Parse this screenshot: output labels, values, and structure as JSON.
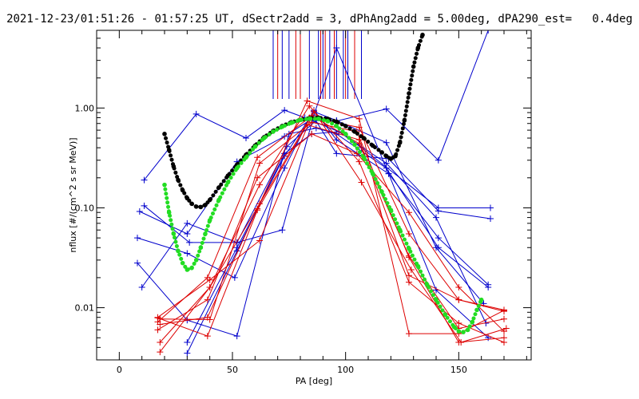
{
  "chart_data": {
    "type": "line",
    "title": "2021-12-23/01:51:26 - 01:57:25 UT, dSectr2add = 3, dPhAng2add = 5.00deg, dPA290_est=   0.4deg",
    "xlabel": "PA [deg]",
    "ylabel": "nflux [#/(cm^2 s sr MeV)]",
    "xlim": [
      -10,
      182
    ],
    "ylim": [
      0.003,
      6.0
    ],
    "yscale": "log",
    "grid": false,
    "x_ticks": [
      0,
      50,
      100,
      150
    ],
    "x_tick_labels": [
      "0",
      "50",
      "100",
      "150"
    ],
    "y_ticks": [
      0.01,
      0.1,
      1.0
    ],
    "y_tick_labels": [
      "0.01",
      "0.10",
      "1.00"
    ],
    "colors": {
      "blue": "#0000cc",
      "red": "#dd0000",
      "fit_black": "#000000",
      "fit_green": "#22dd22"
    },
    "series": [
      {
        "color": "blue",
        "x": [
          11,
          34,
          56,
          73,
          82,
          97,
          107,
          141,
          164
        ],
        "y": [
          0.19,
          0.87,
          0.5,
          0.95,
          0.8,
          0.58,
          0.4,
          0.1,
          0.1
        ]
      },
      {
        "color": "blue",
        "x": [
          9,
          30,
          52,
          73,
          86,
          96,
          119,
          141,
          164
        ],
        "y": [
          0.092,
          0.055,
          0.29,
          0.52,
          0.8,
          0.35,
          0.31,
          0.093,
          0.078
        ]
      },
      {
        "color": "blue",
        "x": [
          11,
          31,
          52,
          74,
          87,
          96,
          118,
          141,
          163
        ],
        "y": [
          0.105,
          0.045,
          0.045,
          0.41,
          0.75,
          0.74,
          0.98,
          0.3,
          6.0
        ]
      },
      {
        "color": "blue",
        "x": [
          8,
          30,
          51,
          73,
          86,
          96,
          119,
          141,
          163
        ],
        "y": [
          0.05,
          0.035,
          0.02,
          0.25,
          0.95,
          0.48,
          0.22,
          0.05,
          0.017
        ]
      },
      {
        "color": "blue",
        "x": [
          8,
          30,
          52,
          75,
          87,
          96,
          118,
          141,
          163
        ],
        "y": [
          0.028,
          0.0075,
          0.0052,
          0.55,
          0.63,
          0.55,
          0.25,
          0.04,
          0.016
        ]
      },
      {
        "color": "blue",
        "x": [
          10,
          30,
          52,
          72,
          86,
          96,
          119,
          140,
          163
        ],
        "y": [
          0.016,
          0.07,
          0.045,
          0.06,
          0.85,
          4.0,
          0.22,
          0.015,
          0.005
        ]
      },
      {
        "color": "blue",
        "x": [
          30,
          52,
          73,
          85,
          97,
          118,
          140,
          162
        ],
        "y": [
          0.0035,
          0.037,
          0.35,
          0.55,
          0.58,
          0.28,
          0.08,
          0.007
        ]
      },
      {
        "color": "blue",
        "x": [
          30,
          52,
          73,
          86,
          96,
          118,
          140,
          161
        ],
        "y": [
          0.0045,
          0.04,
          0.33,
          0.92,
          0.75,
          0.45,
          0.04,
          0.011
        ]
      },
      {
        "color": "red",
        "x": [
          17,
          40,
          62,
          86,
          107,
          129,
          151,
          171
        ],
        "y": [
          0.008,
          0.019,
          0.047,
          0.93,
          0.18,
          0.024,
          0.0045,
          0.0062
        ]
      },
      {
        "color": "red",
        "x": [
          18,
          39,
          61,
          83,
          106,
          128,
          150,
          170
        ],
        "y": [
          0.0068,
          0.008,
          0.098,
          1.18,
          0.78,
          0.0055,
          0.0055,
          0.0094
        ]
      },
      {
        "color": "red",
        "x": [
          17,
          39,
          61,
          83,
          106,
          128,
          150,
          170
        ],
        "y": [
          0.0079,
          0.0052,
          0.095,
          0.68,
          0.48,
          0.021,
          0.012,
          0.0095
        ]
      },
      {
        "color": "red",
        "x": [
          18,
          40,
          62,
          84,
          106,
          128,
          150,
          170
        ],
        "y": [
          0.0045,
          0.016,
          0.17,
          1.05,
          0.29,
          0.018,
          0.007,
          0.0045
        ]
      },
      {
        "color": "red",
        "x": [
          17,
          39,
          61,
          85,
          105,
          128,
          150,
          170
        ],
        "y": [
          0.006,
          0.012,
          0.2,
          0.55,
          0.35,
          0.09,
          0.016,
          0.0058
        ]
      },
      {
        "color": "red",
        "x": [
          18,
          40,
          62,
          85,
          105,
          128,
          150,
          170
        ],
        "y": [
          0.0077,
          0.0076,
          0.28,
          0.72,
          0.58,
          0.032,
          0.0045,
          0.005
        ]
      },
      {
        "color": "red",
        "x": [
          17,
          39,
          61,
          84,
          106,
          128,
          150,
          170
        ],
        "y": [
          0.0072,
          0.02,
          0.32,
          0.8,
          0.64,
          0.055,
          0.012,
          0.0092
        ]
      },
      {
        "color": "red",
        "x": [
          18,
          40,
          62,
          85,
          106,
          128,
          150,
          170
        ],
        "y": [
          0.0036,
          0.016,
          0.11,
          0.84,
          0.44,
          0.033,
          0.0062,
          0.0077
        ]
      }
    ],
    "vertical_markers": [
      {
        "color": "blue",
        "x": [
          68,
          72,
          75,
          84,
          88,
          90,
          93,
          96,
          99,
          101,
          107
        ]
      },
      {
        "color": "red",
        "x": [
          70,
          78,
          80,
          89,
          91,
          95,
          100,
          104
        ]
      }
    ],
    "fit_black": {
      "x": [
        20,
        22,
        24,
        26,
        28,
        30,
        32,
        34,
        36,
        38,
        40,
        44,
        48,
        52,
        56,
        60,
        64,
        68,
        72,
        76,
        80,
        84,
        88,
        92,
        96,
        100,
        104,
        108,
        112,
        116,
        118,
        120,
        122,
        124,
        126,
        128,
        130,
        132,
        134
      ],
      "y": [
        0.55,
        0.38,
        0.26,
        0.19,
        0.15,
        0.125,
        0.11,
        0.103,
        0.102,
        0.107,
        0.12,
        0.16,
        0.21,
        0.27,
        0.34,
        0.42,
        0.51,
        0.59,
        0.66,
        0.72,
        0.76,
        0.79,
        0.8,
        0.78,
        0.73,
        0.66,
        0.58,
        0.5,
        0.42,
        0.36,
        0.33,
        0.31,
        0.33,
        0.45,
        0.75,
        1.4,
        2.6,
        4.0,
        5.4
      ]
    },
    "fit_green": {
      "x": [
        20,
        22,
        24,
        26,
        28,
        30,
        32,
        34,
        36,
        38,
        40,
        44,
        48,
        52,
        56,
        60,
        64,
        68,
        72,
        76,
        80,
        84,
        88,
        92,
        96,
        100,
        104,
        108,
        112,
        116,
        120,
        124,
        128,
        132,
        136,
        140,
        144,
        148,
        150,
        152,
        154,
        156,
        158,
        160
      ],
      "y": [
        0.17,
        0.09,
        0.055,
        0.037,
        0.028,
        0.024,
        0.025,
        0.03,
        0.04,
        0.055,
        0.075,
        0.12,
        0.18,
        0.25,
        0.32,
        0.41,
        0.5,
        0.58,
        0.65,
        0.71,
        0.76,
        0.78,
        0.78,
        0.74,
        0.66,
        0.55,
        0.43,
        0.32,
        0.22,
        0.145,
        0.095,
        0.06,
        0.039,
        0.026,
        0.017,
        0.012,
        0.0085,
        0.0064,
        0.0058,
        0.0057,
        0.006,
        0.0072,
        0.0095,
        0.012
      ]
    }
  }
}
